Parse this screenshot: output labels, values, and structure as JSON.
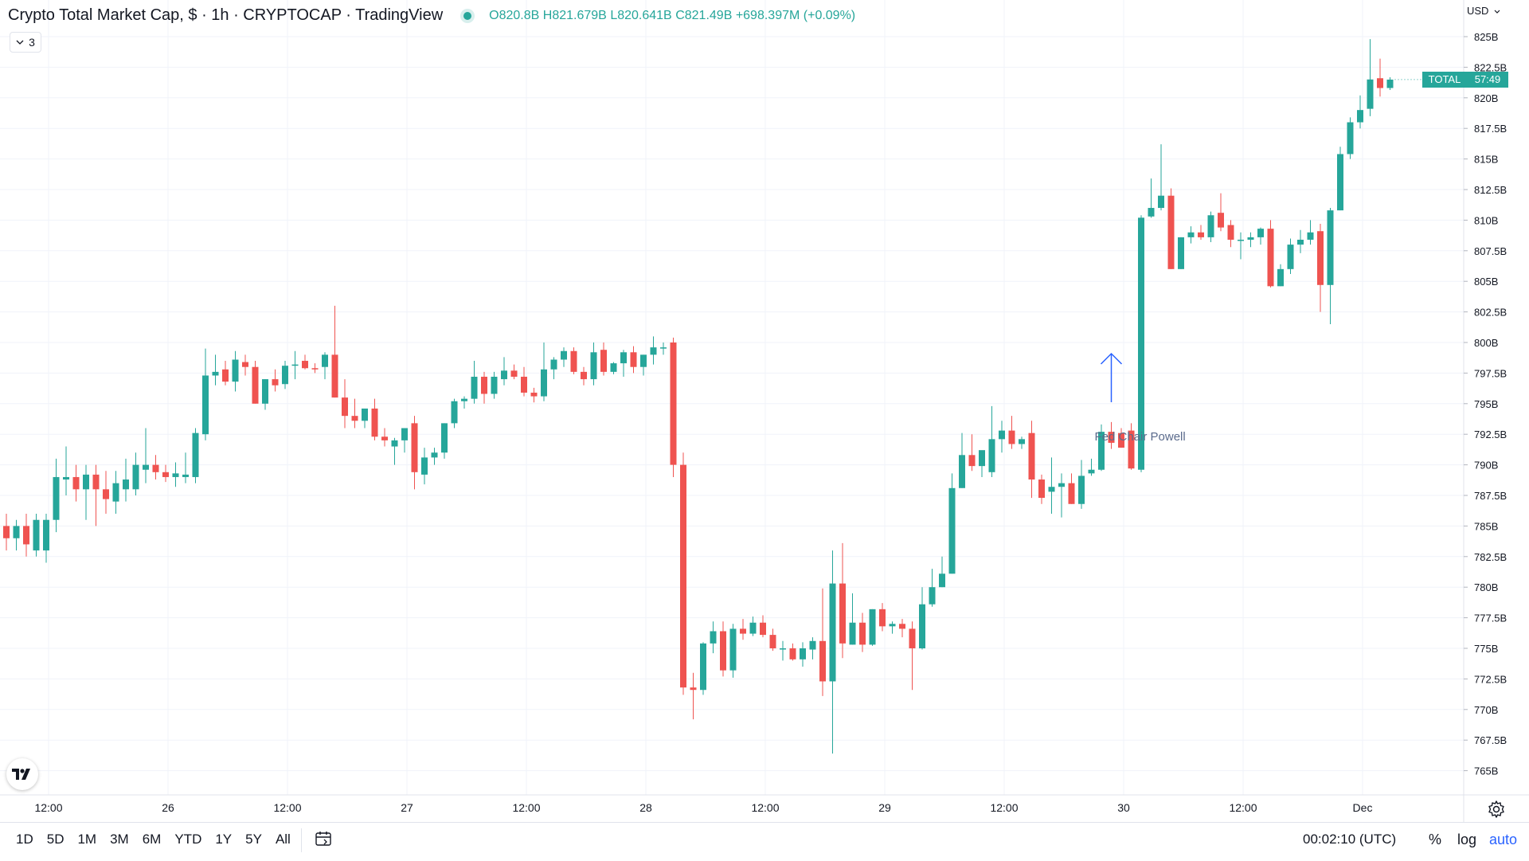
{
  "legend": {
    "title": "Crypto Total Market Cap, $ · 1h · CRYPTOCAP · TradingView",
    "o_key": "O",
    "o_val": "820.8B",
    "h_key": "H",
    "h_val": "821.679B",
    "l_key": "L",
    "l_val": "820.641B",
    "c_key": "C",
    "c_val": "821.49B",
    "change": "+698.397M (+0.09%)",
    "collapse_count": "3"
  },
  "currency": "USD",
  "price_tag": {
    "symbol": "TOTAL",
    "countdown": "57:49",
    "value": 821.49,
    "color": "#26a69a"
  },
  "clock": "00:02:10 (UTC)",
  "ranges": [
    "1D",
    "5D",
    "1M",
    "3M",
    "6M",
    "YTD",
    "1Y",
    "5Y",
    "All"
  ],
  "scale_controls": {
    "percent": "%",
    "log": "log",
    "auto": "auto"
  },
  "icons": {
    "logo": "tradingview-logo-icon",
    "calendar": "calendar-icon",
    "settings": "gear-icon",
    "collapse": "chevron-down-icon"
  },
  "colors": {
    "up": "#26a69a",
    "down": "#ef5350",
    "annotation": "#2962ff",
    "grid": "#f0f3fa"
  },
  "chart_data": {
    "type": "candlestick",
    "title": "Crypto Total Market Cap, $ · 1h · CRYPTOCAP · TradingView",
    "y_unit": "B USD",
    "ylim": [
      763.5,
      827
    ],
    "y_ticks": [
      "825B",
      "822.5B",
      "820B",
      "817.5B",
      "815B",
      "812.5B",
      "810B",
      "807.5B",
      "805B",
      "802.5B",
      "800B",
      "797.5B",
      "795B",
      "792.5B",
      "790B",
      "787.5B",
      "785B",
      "782.5B",
      "780B",
      "777.5B",
      "775B",
      "772.5B",
      "770B",
      "767.5B",
      "765B"
    ],
    "x_ticks": [
      "12:00",
      "26",
      "12:00",
      "27",
      "12:00",
      "28",
      "12:00",
      "29",
      "12:00",
      "30",
      "12:00",
      "Dec"
    ],
    "grid": true,
    "annotation": {
      "text": "Fed Chair Powell",
      "candle_index": 111
    },
    "candles": [
      {
        "o": 785,
        "h": 786,
        "l": 783,
        "c": 784
      },
      {
        "o": 784,
        "h": 785.5,
        "l": 783,
        "c": 785
      },
      {
        "o": 785,
        "h": 786,
        "l": 782.5,
        "c": 783.5
      },
      {
        "o": 783,
        "h": 786,
        "l": 782.5,
        "c": 785.5
      },
      {
        "o": 783,
        "h": 786,
        "l": 782,
        "c": 785.5
      },
      {
        "o": 785.5,
        "h": 790.5,
        "l": 784.5,
        "c": 789
      },
      {
        "o": 788.8,
        "h": 791.5,
        "l": 787.5,
        "c": 789
      },
      {
        "o": 789,
        "h": 790,
        "l": 787,
        "c": 788
      },
      {
        "o": 788,
        "h": 790,
        "l": 785.5,
        "c": 789.2
      },
      {
        "o": 789.2,
        "h": 790,
        "l": 785,
        "c": 788
      },
      {
        "o": 788,
        "h": 789.5,
        "l": 786,
        "c": 787.2
      },
      {
        "o": 787,
        "h": 789.5,
        "l": 786,
        "c": 788.5
      },
      {
        "o": 788,
        "h": 790.5,
        "l": 787,
        "c": 788.8
      },
      {
        "o": 788,
        "h": 791,
        "l": 787.5,
        "c": 790
      },
      {
        "o": 789.6,
        "h": 793,
        "l": 788.5,
        "c": 790
      },
      {
        "o": 790,
        "h": 790.8,
        "l": 788.8,
        "c": 789.4
      },
      {
        "o": 789.4,
        "h": 790,
        "l": 788.6,
        "c": 789
      },
      {
        "o": 789,
        "h": 790.2,
        "l": 788.2,
        "c": 789.3
      },
      {
        "o": 789,
        "h": 791,
        "l": 788.5,
        "c": 789.2
      },
      {
        "o": 789,
        "h": 793,
        "l": 788.5,
        "c": 792.6
      },
      {
        "o": 792.5,
        "h": 799.5,
        "l": 792,
        "c": 797.3
      },
      {
        "o": 797.3,
        "h": 799,
        "l": 796.5,
        "c": 797.6
      },
      {
        "o": 797.8,
        "h": 798.5,
        "l": 796.5,
        "c": 796.8
      },
      {
        "o": 796.8,
        "h": 799.3,
        "l": 796,
        "c": 798.6
      },
      {
        "o": 798.4,
        "h": 799,
        "l": 797.3,
        "c": 798
      },
      {
        "o": 798,
        "h": 798.5,
        "l": 795,
        "c": 795
      },
      {
        "o": 795,
        "h": 797,
        "l": 794.5,
        "c": 797
      },
      {
        "o": 797,
        "h": 797.8,
        "l": 796,
        "c": 796.5
      },
      {
        "o": 796.6,
        "h": 798.5,
        "l": 796.2,
        "c": 798.1
      },
      {
        "o": 798.1,
        "h": 799.3,
        "l": 797,
        "c": 798.2
      },
      {
        "o": 798.5,
        "h": 799,
        "l": 797.8,
        "c": 797.9
      },
      {
        "o": 797.9,
        "h": 798.3,
        "l": 797.5,
        "c": 797.8
      },
      {
        "o": 798,
        "h": 799.2,
        "l": 797,
        "c": 799
      },
      {
        "o": 799,
        "h": 803,
        "l": 795.5,
        "c": 795.5
      },
      {
        "o": 795.5,
        "h": 797,
        "l": 793,
        "c": 794
      },
      {
        "o": 794,
        "h": 795.4,
        "l": 793,
        "c": 793.6
      },
      {
        "o": 793.6,
        "h": 794.5,
        "l": 793,
        "c": 794.6
      },
      {
        "o": 794.6,
        "h": 795.4,
        "l": 792,
        "c": 792.3
      },
      {
        "o": 792.3,
        "h": 793,
        "l": 791.5,
        "c": 792
      },
      {
        "o": 791.5,
        "h": 792.2,
        "l": 790,
        "c": 792
      },
      {
        "o": 792,
        "h": 793,
        "l": 791,
        "c": 793
      },
      {
        "o": 793.4,
        "h": 794,
        "l": 788,
        "c": 789.4
      },
      {
        "o": 789.2,
        "h": 791.4,
        "l": 788.4,
        "c": 790.6
      },
      {
        "o": 790.6,
        "h": 791.4,
        "l": 790,
        "c": 791
      },
      {
        "o": 791,
        "h": 793.4,
        "l": 790.5,
        "c": 793.4
      },
      {
        "o": 793.4,
        "h": 795.4,
        "l": 793,
        "c": 795.2
      },
      {
        "o": 795.2,
        "h": 795.6,
        "l": 794.6,
        "c": 795.4
      },
      {
        "o": 795.4,
        "h": 798.5,
        "l": 795,
        "c": 797.2
      },
      {
        "o": 797.2,
        "h": 797.6,
        "l": 795,
        "c": 795.8
      },
      {
        "o": 795.8,
        "h": 797.6,
        "l": 795.4,
        "c": 797.2
      },
      {
        "o": 797,
        "h": 798.8,
        "l": 796.5,
        "c": 797.7
      },
      {
        "o": 797.7,
        "h": 798.2,
        "l": 797,
        "c": 797.2
      },
      {
        "o": 797.2,
        "h": 798,
        "l": 795.6,
        "c": 795.9
      },
      {
        "o": 795.9,
        "h": 796.3,
        "l": 795.1,
        "c": 795.6
      },
      {
        "o": 795.6,
        "h": 800,
        "l": 795.2,
        "c": 797.8
      },
      {
        "o": 797.8,
        "h": 798.8,
        "l": 797,
        "c": 798.6
      },
      {
        "o": 798.6,
        "h": 799.6,
        "l": 798,
        "c": 799.3
      },
      {
        "o": 799.3,
        "h": 799.6,
        "l": 797.4,
        "c": 797.6
      },
      {
        "o": 797.6,
        "h": 798,
        "l": 796.5,
        "c": 797
      },
      {
        "o": 797,
        "h": 800,
        "l": 796.5,
        "c": 799.2
      },
      {
        "o": 799.4,
        "h": 800,
        "l": 797.3,
        "c": 797.6
      },
      {
        "o": 797.6,
        "h": 798.4,
        "l": 797.4,
        "c": 798.3
      },
      {
        "o": 798.3,
        "h": 799.4,
        "l": 797.2,
        "c": 799.2
      },
      {
        "o": 799.2,
        "h": 799.7,
        "l": 797.5,
        "c": 798
      },
      {
        "o": 798,
        "h": 799,
        "l": 797.3,
        "c": 799
      },
      {
        "o": 799,
        "h": 800.5,
        "l": 798.2,
        "c": 799.6
      },
      {
        "o": 799.6,
        "h": 800,
        "l": 799,
        "c": 799.6
      },
      {
        "o": 800,
        "h": 800.4,
        "l": 789,
        "c": 790
      },
      {
        "o": 790,
        "h": 791,
        "l": 771.2,
        "c": 771.8
      },
      {
        "o": 771.8,
        "h": 773,
        "l": 769.2,
        "c": 771.6
      },
      {
        "o": 771.6,
        "h": 775.5,
        "l": 771.2,
        "c": 775.4
      },
      {
        "o": 775.4,
        "h": 777.2,
        "l": 774.6,
        "c": 776.4
      },
      {
        "o": 776.4,
        "h": 777.2,
        "l": 772.7,
        "c": 773.2
      },
      {
        "o": 773.2,
        "h": 777,
        "l": 772.6,
        "c": 776.6
      },
      {
        "o": 776.6,
        "h": 777.4,
        "l": 775.7,
        "c": 776.2
      },
      {
        "o": 776.2,
        "h": 777.6,
        "l": 776,
        "c": 777.1
      },
      {
        "o": 777.1,
        "h": 777.7,
        "l": 775.9,
        "c": 776.1
      },
      {
        "o": 776.1,
        "h": 776.6,
        "l": 774.8,
        "c": 775
      },
      {
        "o": 775,
        "h": 775.6,
        "l": 774,
        "c": 775
      },
      {
        "o": 775,
        "h": 775.4,
        "l": 774,
        "c": 774.1
      },
      {
        "o": 774.1,
        "h": 775.5,
        "l": 773.5,
        "c": 775
      },
      {
        "o": 774.9,
        "h": 775.9,
        "l": 774.1,
        "c": 775.6
      },
      {
        "o": 775.6,
        "h": 779.9,
        "l": 771.1,
        "c": 772.3
      },
      {
        "o": 772.3,
        "h": 783,
        "l": 766.4,
        "c": 780.3
      },
      {
        "o": 780.3,
        "h": 783.6,
        "l": 774.2,
        "c": 775.4
      },
      {
        "o": 775.3,
        "h": 779.5,
        "l": 775.3,
        "c": 777.1
      },
      {
        "o": 777.1,
        "h": 777.9,
        "l": 774.7,
        "c": 775.3
      },
      {
        "o": 775.3,
        "h": 778.2,
        "l": 775.2,
        "c": 778.2
      },
      {
        "o": 778.2,
        "h": 778.7,
        "l": 776.4,
        "c": 776.8
      },
      {
        "o": 776.8,
        "h": 777.2,
        "l": 776.2,
        "c": 777
      },
      {
        "o": 777,
        "h": 777.4,
        "l": 775.9,
        "c": 776.6
      },
      {
        "o": 776.6,
        "h": 777.2,
        "l": 771.6,
        "c": 775
      },
      {
        "o": 775,
        "h": 780,
        "l": 774.9,
        "c": 778.6
      },
      {
        "o": 778.6,
        "h": 781.5,
        "l": 778.4,
        "c": 780
      },
      {
        "o": 780,
        "h": 782.5,
        "l": 780,
        "c": 781.1
      },
      {
        "o": 781.1,
        "h": 789.3,
        "l": 781.1,
        "c": 788.1
      },
      {
        "o": 788.1,
        "h": 792.6,
        "l": 788.1,
        "c": 790.8
      },
      {
        "o": 790.8,
        "h": 792.5,
        "l": 789.5,
        "c": 789.9
      },
      {
        "o": 789.9,
        "h": 791,
        "l": 789,
        "c": 791.2
      },
      {
        "o": 789.4,
        "h": 794.8,
        "l": 789,
        "c": 792.1
      },
      {
        "o": 792.1,
        "h": 793.6,
        "l": 791,
        "c": 792.8
      },
      {
        "o": 792.8,
        "h": 794,
        "l": 791.3,
        "c": 791.7
      },
      {
        "o": 791.7,
        "h": 792.3,
        "l": 791.3,
        "c": 792.1
      },
      {
        "o": 792.6,
        "h": 793.6,
        "l": 787.3,
        "c": 788.8
      },
      {
        "o": 788.8,
        "h": 789.2,
        "l": 786.8,
        "c": 787.3
      },
      {
        "o": 787.8,
        "h": 790.6,
        "l": 786,
        "c": 788.2
      },
      {
        "o": 788.2,
        "h": 789.3,
        "l": 785.7,
        "c": 788.5
      },
      {
        "o": 788.5,
        "h": 789.3,
        "l": 786.8,
        "c": 786.8
      },
      {
        "o": 786.8,
        "h": 790.4,
        "l": 786.4,
        "c": 789.1
      },
      {
        "o": 789.3,
        "h": 790.5,
        "l": 789.1,
        "c": 789.6
      },
      {
        "o": 789.6,
        "h": 793.3,
        "l": 789.5,
        "c": 792.7
      },
      {
        "o": 792.7,
        "h": 793.5,
        "l": 791.3,
        "c": 791.8
      },
      {
        "o": 792.6,
        "h": 793,
        "l": 791.4,
        "c": 791.4
      },
      {
        "o": 792.8,
        "h": 793.4,
        "l": 789.6,
        "c": 789.7
      },
      {
        "o": 789.6,
        "h": 810.4,
        "l": 789.4,
        "c": 810.2
      },
      {
        "o": 810.3,
        "h": 813.4,
        "l": 810.2,
        "c": 811
      },
      {
        "o": 811,
        "h": 816.2,
        "l": 810.8,
        "c": 812
      },
      {
        "o": 812,
        "h": 812.6,
        "l": 806,
        "c": 806
      },
      {
        "o": 806,
        "h": 808.6,
        "l": 806,
        "c": 808.6
      },
      {
        "o": 808.6,
        "h": 809.5,
        "l": 808.1,
        "c": 809
      },
      {
        "o": 809,
        "h": 809.6,
        "l": 808.4,
        "c": 808.6
      },
      {
        "o": 808.6,
        "h": 810.7,
        "l": 808.2,
        "c": 810.4
      },
      {
        "o": 810.6,
        "h": 812.2,
        "l": 809.1,
        "c": 809.4
      },
      {
        "o": 809.6,
        "h": 810,
        "l": 807.8,
        "c": 808.4
      },
      {
        "o": 808.4,
        "h": 809,
        "l": 806.8,
        "c": 808.4
      },
      {
        "o": 808.4,
        "h": 809,
        "l": 807.8,
        "c": 808.6
      },
      {
        "o": 808.6,
        "h": 809.4,
        "l": 808,
        "c": 809.3
      },
      {
        "o": 809.3,
        "h": 810,
        "l": 804.5,
        "c": 804.6
      },
      {
        "o": 804.6,
        "h": 806.4,
        "l": 804.6,
        "c": 806
      },
      {
        "o": 806,
        "h": 808.5,
        "l": 805.6,
        "c": 808
      },
      {
        "o": 808,
        "h": 809.2,
        "l": 807.3,
        "c": 808.4
      },
      {
        "o": 808.4,
        "h": 810,
        "l": 808,
        "c": 809
      },
      {
        "o": 809.1,
        "h": 809.7,
        "l": 802.5,
        "c": 804.7
      },
      {
        "o": 804.7,
        "h": 811,
        "l": 801.5,
        "c": 810.8
      },
      {
        "o": 810.8,
        "h": 816,
        "l": 810.8,
        "c": 815.4
      },
      {
        "o": 815.4,
        "h": 818.4,
        "l": 815,
        "c": 818
      },
      {
        "o": 818,
        "h": 820.2,
        "l": 817.5,
        "c": 819
      },
      {
        "o": 819.1,
        "h": 824.8,
        "l": 818.5,
        "c": 821.5
      },
      {
        "o": 821.6,
        "h": 823.2,
        "l": 820.1,
        "c": 820.8
      },
      {
        "o": 820.8,
        "h": 821.68,
        "l": 820.64,
        "c": 821.49
      }
    ]
  }
}
